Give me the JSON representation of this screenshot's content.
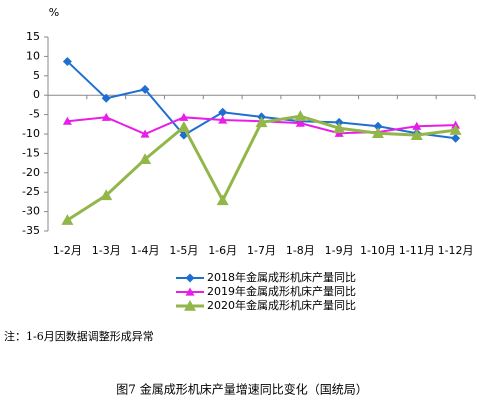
{
  "chart_data": {
    "type": "line",
    "y_label": "%",
    "categories": [
      "1-2月",
      "1-3月",
      "1-4月",
      "1-5月",
      "1-6月",
      "1-7月",
      "1-8月",
      "1-9月",
      "1-10月",
      "1-11月",
      "1-12月"
    ],
    "series": [
      {
        "name": "2018年金属成形机床产量同比",
        "color": "#1f6fd1",
        "marker": "diamond",
        "values": [
          8.7,
          -0.8,
          1.5,
          -10.3,
          -4.4,
          -5.6,
          -6.7,
          -7,
          -8,
          -9.8,
          -11.1
        ]
      },
      {
        "name": "2019年金属成形机床产量同比",
        "color": "#e81ee8",
        "marker": "triangle",
        "values": [
          -6.7,
          -5.7,
          -10,
          -5.7,
          -6.4,
          -6.7,
          -7.2,
          -9.8,
          -9.5,
          -8,
          -7.7
        ]
      },
      {
        "name": "2020年金属成形机床产量同比",
        "color": "#92b64a",
        "marker": "triangle",
        "values": [
          -32.2,
          -25.8,
          -16.5,
          -8.2,
          -27.1,
          -7,
          -5.4,
          -8.5,
          -9.8,
          -10.3,
          -9
        ]
      }
    ],
    "ylim": [
      -35,
      15
    ],
    "yticks": [
      15,
      10,
      5,
      0,
      -5,
      -10,
      -15,
      -20,
      -25,
      -30,
      -35
    ],
    "grid": false,
    "note": "注：1-6月因数据调整形成异常",
    "caption": "图7 金属成形机床产量增速同比变化（国统局）"
  }
}
